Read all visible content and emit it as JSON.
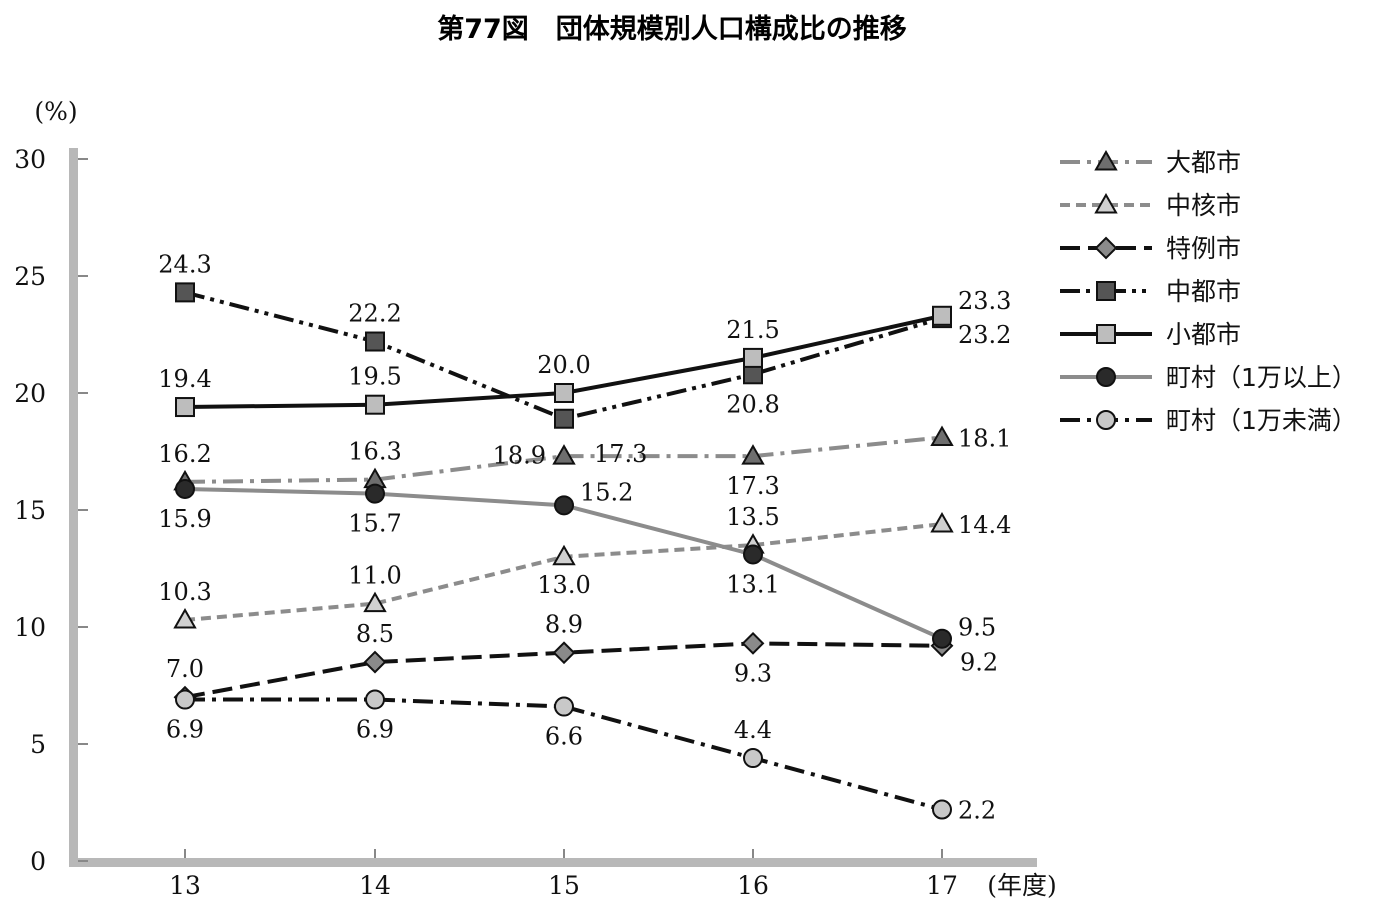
{
  "chart_data": {
    "type": "line",
    "title": "第77図　団体規模別人口構成比の推移",
    "ylabel": "(%)",
    "xlabel": "(年度)",
    "categories": [
      "13",
      "14",
      "15",
      "16",
      "17"
    ],
    "yticks": [
      "0",
      "5",
      "10",
      "15",
      "20",
      "25",
      "30"
    ],
    "ylim": [
      0,
      30
    ],
    "grid": false,
    "legend_position": "right",
    "series": [
      {
        "name": "大都市",
        "values": [
          16.2,
          16.3,
          17.3,
          17.3,
          18.1
        ],
        "labels": [
          "16.2",
          "16.3",
          "17.3",
          "17.3",
          "18.1"
        ],
        "marker": "triangle",
        "line_color": "#8c8c8c",
        "marker_color": "#6e6e6e",
        "dash": "dash-dot"
      },
      {
        "name": "中核市",
        "values": [
          10.3,
          11.0,
          13.0,
          13.5,
          14.4
        ],
        "labels": [
          "10.3",
          "11.0",
          "13.0",
          "13.5",
          "14.4"
        ],
        "marker": "triangle",
        "line_color": "#8c8c8c",
        "marker_color": "#d0d0d0",
        "dash": "dash"
      },
      {
        "name": "特例市",
        "values": [
          7.0,
          8.5,
          8.9,
          9.3,
          9.2
        ],
        "labels": [
          "7.0",
          "8.5",
          "8.9",
          "9.3",
          "9.2"
        ],
        "marker": "diamond",
        "line_color": "#111111",
        "marker_color": "#8a8a8a",
        "dash": "long-dash"
      },
      {
        "name": "中都市",
        "values": [
          24.3,
          22.2,
          18.9,
          20.8,
          23.2
        ],
        "labels": [
          "24.3",
          "22.2",
          "18.9",
          "20.8",
          "23.2"
        ],
        "marker": "square",
        "line_color": "#111111",
        "marker_color": "#555555",
        "dash": "dash-dot-dot"
      },
      {
        "name": "小都市",
        "values": [
          19.4,
          19.5,
          20.0,
          21.5,
          23.3
        ],
        "labels": [
          "19.4",
          "19.5",
          "20.0",
          "21.5",
          "23.3"
        ],
        "marker": "square",
        "line_color": "#111111",
        "marker_color": "#bdbdbd",
        "dash": "solid"
      },
      {
        "name": "町村（1万以上）",
        "values": [
          15.9,
          15.7,
          15.2,
          13.1,
          9.5
        ],
        "labels": [
          "15.9",
          "15.7",
          "15.2",
          "13.1",
          "9.5"
        ],
        "marker": "circle",
        "line_color": "#8c8c8c",
        "marker_color": "#2a2a2a",
        "dash": "solid"
      },
      {
        "name": "町村（1万未満）",
        "values": [
          6.9,
          6.9,
          6.6,
          4.4,
          2.2
        ],
        "labels": [
          "6.9",
          "6.9",
          "6.6",
          "4.4",
          "2.2"
        ],
        "marker": "circle",
        "line_color": "#111111",
        "marker_color": "#c8c8c8",
        "dash": "dash-dot"
      }
    ]
  }
}
